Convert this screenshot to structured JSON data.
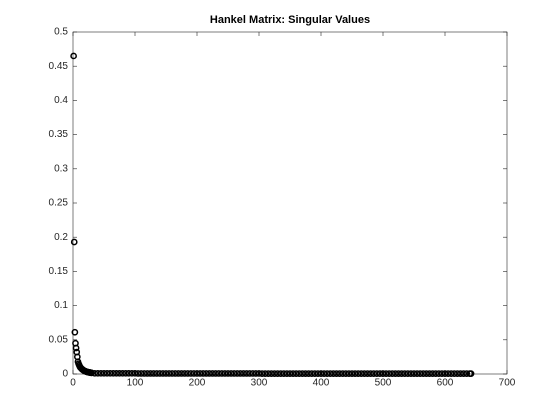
{
  "chart_data": {
    "type": "scatter",
    "title": "Hankel Matrix: Singular Values",
    "x": [
      1,
      2,
      3,
      4,
      5,
      6,
      7,
      8,
      9,
      10,
      11,
      12,
      13,
      14,
      15,
      16,
      17,
      18,
      19,
      20,
      21,
      22,
      23,
      24,
      25,
      26,
      27,
      28,
      29,
      30,
      35,
      40,
      45,
      50,
      55,
      60,
      65,
      70,
      75,
      80,
      85,
      90,
      95,
      100,
      105,
      110,
      115,
      120,
      125,
      130,
      135,
      140,
      145,
      150,
      155,
      160,
      165,
      170,
      175,
      180,
      185,
      190,
      195,
      200,
      205,
      210,
      215,
      220,
      225,
      230,
      235,
      240,
      245,
      250,
      255,
      260,
      265,
      270,
      275,
      280,
      285,
      290,
      295,
      300,
      305,
      310,
      315,
      320,
      325,
      330,
      335,
      340,
      345,
      350,
      355,
      360,
      365,
      370,
      375,
      380,
      385,
      390,
      395,
      400,
      405,
      410,
      415,
      420,
      425,
      430,
      435,
      440,
      445,
      450,
      455,
      460,
      465,
      470,
      475,
      480,
      485,
      490,
      495,
      500,
      505,
      510,
      515,
      520,
      525,
      530,
      535,
      540,
      545,
      550,
      555,
      560,
      565,
      570,
      575,
      580,
      585,
      590,
      595,
      600,
      605,
      610,
      615,
      620,
      625,
      630,
      635,
      640,
      642
    ],
    "values": [
      0.465,
      0.193,
      0.061,
      0.045,
      0.038,
      0.032,
      0.025,
      0.018,
      0.015,
      0.013,
      0.011,
      0.0095,
      0.0085,
      0.0075,
      0.0068,
      0.006,
      0.0054,
      0.0048,
      0.0044,
      0.004,
      0.0036,
      0.0033,
      0.003,
      0.0028,
      0.0026,
      0.0024,
      0.0022,
      0.002,
      0.0018,
      0.0016,
      0.001,
      0.001,
      0.001,
      0.001,
      0.001,
      0.001,
      0.001,
      0.001,
      0.001,
      0.001,
      0.001,
      0.001,
      0.001,
      0.001,
      0.0008,
      0.0008,
      0.0008,
      0.0008,
      0.0008,
      0.0008,
      0.0008,
      0.0008,
      0.0008,
      0.0008,
      0.0008,
      0.0008,
      0.0008,
      0.0008,
      0.0008,
      0.0008,
      0.0008,
      0.0008,
      0.0008,
      0.0008,
      0.0008,
      0.0008,
      0.0008,
      0.0008,
      0.0008,
      0.0008,
      0.0008,
      0.0008,
      0.0008,
      0.0008,
      0.0008,
      0.0008,
      0.0008,
      0.0008,
      0.0008,
      0.0008,
      0.0008,
      0.0008,
      0.0008,
      0.0008,
      0.0005,
      0.0005,
      0.0005,
      0.0005,
      0.0005,
      0.0005,
      0.0005,
      0.0005,
      0.0005,
      0.0005,
      0.0005,
      0.0005,
      0.0005,
      0.0005,
      0.0005,
      0.0005,
      0.0005,
      0.0005,
      0.0005,
      0.0005,
      0.0005,
      0.0005,
      0.0005,
      0.0005,
      0.0005,
      0.0005,
      0.0005,
      0.0005,
      0.0005,
      0.0005,
      0.0005,
      0.0005,
      0.0005,
      0.0005,
      0.0005,
      0.0005,
      0.0005,
      0.0005,
      0.0005,
      0.0005,
      0.0005,
      0.0005,
      0.0005,
      0.0005,
      0.0005,
      0.0005,
      0.0005,
      0.0005,
      0.0005,
      0.0005,
      0.0005,
      0.0005,
      0.0005,
      0.0005,
      0.0005,
      0.0005,
      0.0005,
      0.0005,
      0.0005,
      0.0005,
      0.0005,
      0.0005,
      0.0005,
      0.0005,
      0.0005,
      0.0005,
      0.0005,
      0.0005,
      0.0005
    ],
    "color": "#000000",
    "xlim": [
      0,
      700
    ],
    "xticks": [
      0,
      100,
      200,
      300,
      400,
      500,
      600,
      700
    ],
    "ylim": [
      0,
      0.5
    ],
    "yticks": [
      0,
      0.05,
      0.1,
      0.15,
      0.2,
      0.25,
      0.3,
      0.35,
      0.4,
      0.45,
      0.5
    ]
  }
}
